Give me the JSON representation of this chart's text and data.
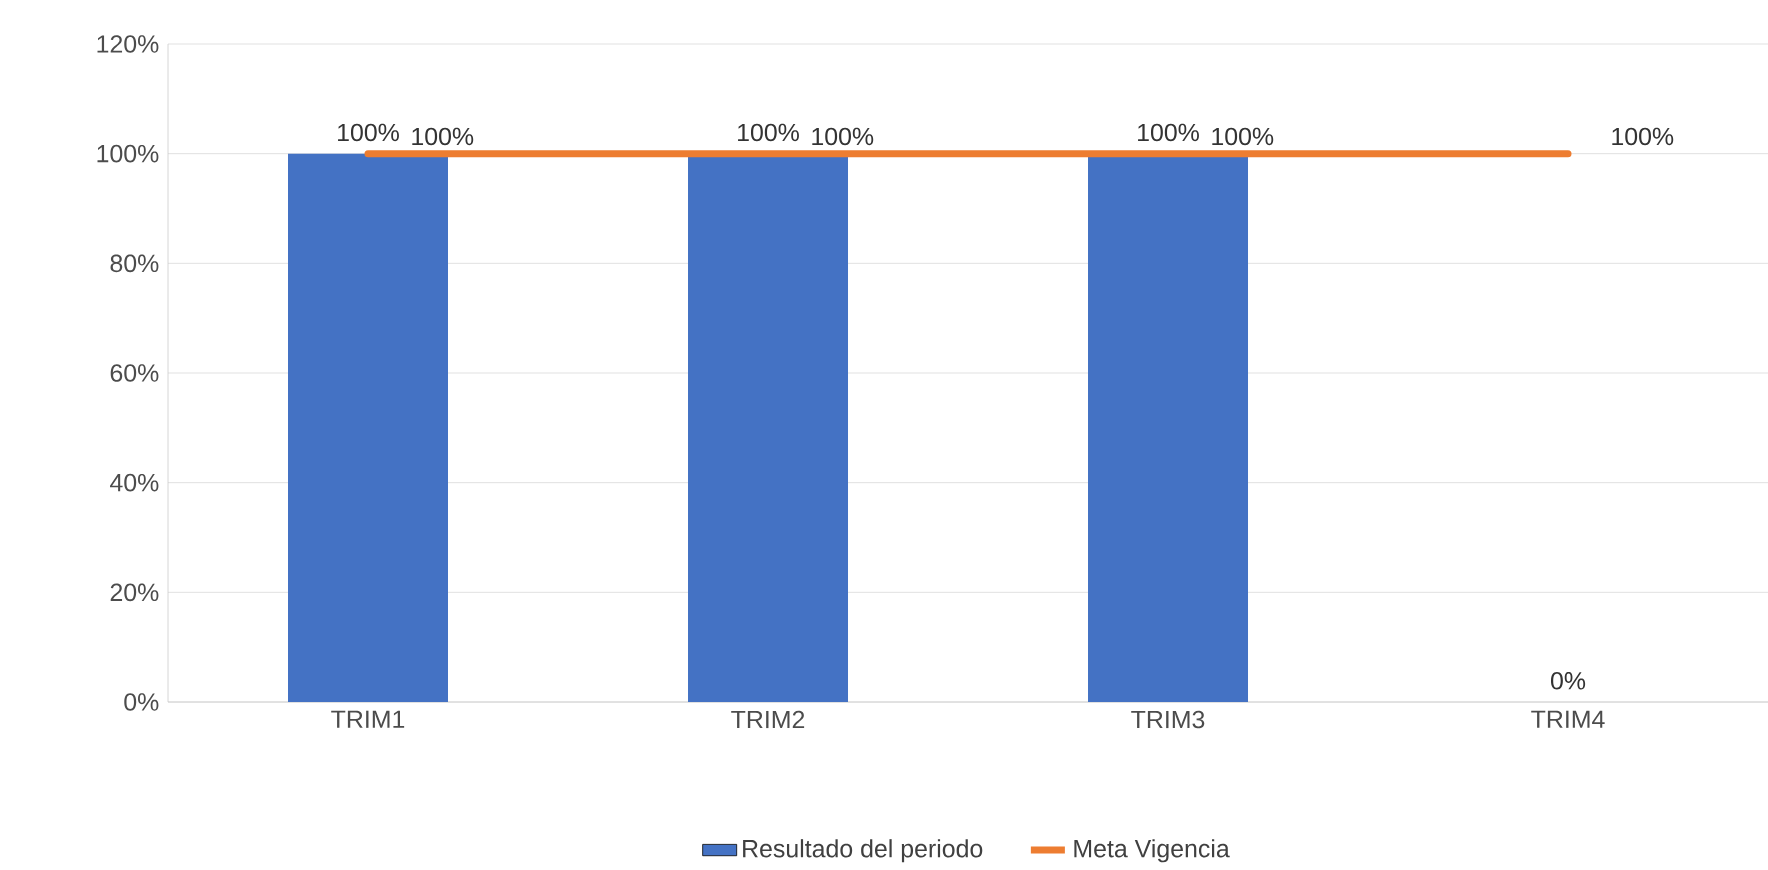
{
  "chart_data": {
    "type": "bar",
    "categories": [
      "TRIM1",
      "TRIM2",
      "TRIM3",
      "TRIM4"
    ],
    "series": [
      {
        "name": "Resultado del periodo",
        "color": "#4472c4",
        "values": [
          100,
          100,
          100,
          0
        ],
        "value_labels": [
          "100%",
          "100%",
          "100%",
          "0%"
        ]
      },
      {
        "name": "Meta Vigencia",
        "type": "line",
        "color": "#ed7d31",
        "values": [
          100,
          100,
          100,
          100
        ],
        "value_labels": [
          "100%",
          "100%",
          "100%",
          "100%"
        ]
      }
    ],
    "ylim": [
      0,
      120
    ],
    "yticks": [
      {
        "value": 0,
        "label": "0%"
      },
      {
        "value": 20,
        "label": "20%"
      },
      {
        "value": 40,
        "label": "40%"
      },
      {
        "value": 60,
        "label": "60%"
      },
      {
        "value": 80,
        "label": "80%"
      },
      {
        "value": 100,
        "label": "100%"
      },
      {
        "value": 120,
        "label": "120%"
      }
    ],
    "grid": "y",
    "legend": "bottom"
  }
}
